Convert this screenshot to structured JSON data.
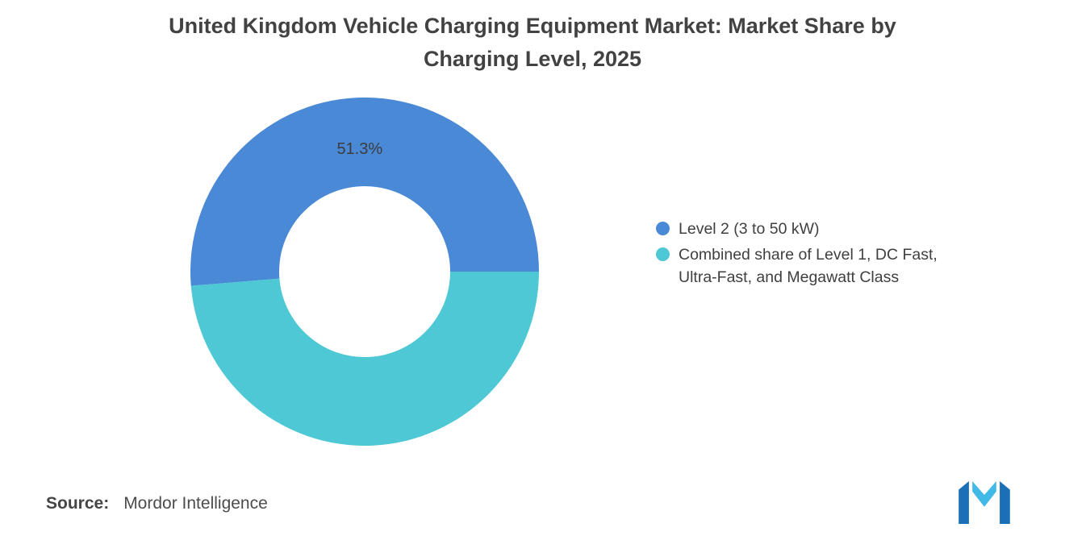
{
  "title": {
    "line1": "United Kingdom Vehicle Charging Equipment Market: Market Share by",
    "line2": "Charging Level, 2025"
  },
  "chart_data": {
    "type": "pie",
    "subtype": "donut",
    "title": "United Kingdom Vehicle Charging Equipment Market: Market Share by Charging Level, 2025",
    "inner_radius_ratio": 0.49,
    "start_angle_deg": 0,
    "direction": "counterclockwise",
    "legend_position": "right",
    "slices": [
      {
        "label": "Level 2 (3 to 50 kW)",
        "value": 51.3,
        "color": "#4a89d6",
        "data_label": "51.3%"
      },
      {
        "label": "Combined share of Level 1, DC Fast, Ultra-Fast, and Megawatt Class",
        "value": 48.7,
        "color": "#4dc8d4",
        "data_label": null
      }
    ]
  },
  "legend": {
    "items": [
      {
        "label": "Level 2 (3 to 50 kW)",
        "color": "#4a89d6"
      },
      {
        "label": "Combined share of Level 1, DC Fast, Ultra-Fast, and Megawatt Class",
        "color": "#4dc8d4"
      }
    ]
  },
  "footer": {
    "source_label": "Source:",
    "source_value": "Mordor Intelligence"
  },
  "logo": {
    "name": "mordor-intelligence-logo",
    "color_dark": "#1b6fb5",
    "color_light": "#41b9e6"
  }
}
